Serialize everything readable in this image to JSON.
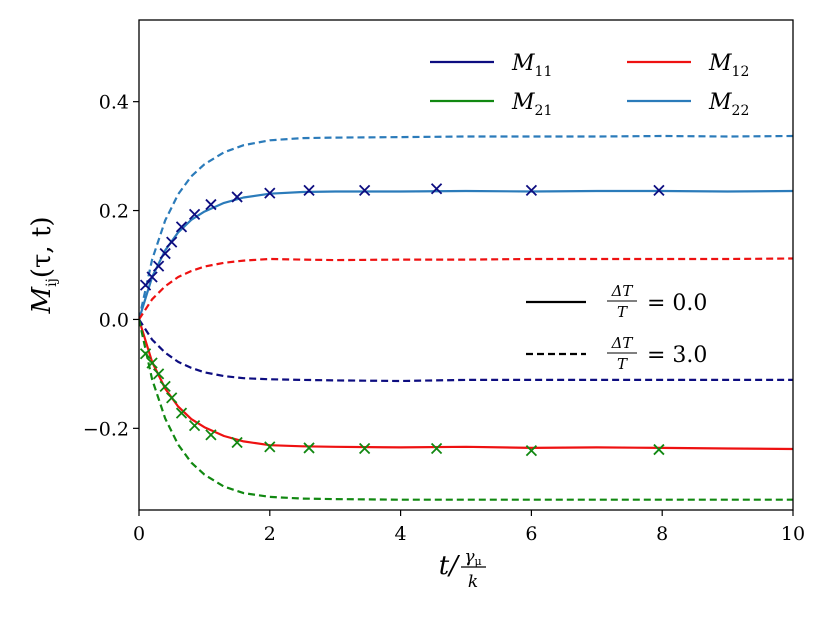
{
  "chart_data": {
    "type": "line",
    "title": "",
    "xlabel_main": "t/",
    "xlabel_num": "γ",
    "xlabel_num_sub": "μ",
    "xlabel_den": "k",
    "ylabel_main": "M",
    "ylabel_sub": "ij",
    "ylabel_args": "(τ, t)",
    "xlim": [
      0,
      10
    ],
    "ylim": [
      -0.35,
      0.55
    ],
    "xticks": [
      0,
      2,
      4,
      6,
      8,
      10
    ],
    "yticks": [
      -0.2,
      0.0,
      0.2,
      0.4
    ],
    "xtick_labels": [
      "0",
      "2",
      "4",
      "6",
      "8",
      "10"
    ],
    "ytick_labels": [
      "−0.2",
      "0.0",
      "0.2",
      "0.4"
    ],
    "grid": false,
    "colors": {
      "M11": "#0d0d80",
      "M12": "#ee1111",
      "M21": "#118811",
      "M22": "#2b7bba"
    },
    "series_legend": [
      {
        "key": "M11",
        "main": "M",
        "sub": "11"
      },
      {
        "key": "M12",
        "main": "M",
        "sub": "12"
      },
      {
        "key": "M21",
        "main": "M",
        "sub": "21"
      },
      {
        "key": "M22",
        "main": "M",
        "sub": "22"
      }
    ],
    "style_legend": [
      {
        "dash": "solid",
        "num": "ΔT",
        "den": "T",
        "value": "= 0.0"
      },
      {
        "dash": "dashed",
        "num": "ΔT",
        "den": "T",
        "value": "= 3.0"
      }
    ],
    "series": [
      {
        "key": "M22",
        "dash": "solid",
        "x": [
          0,
          0.2,
          0.4,
          0.6,
          0.8,
          1.0,
          1.3,
          1.6,
          2.0,
          2.5,
          3.0,
          4.0,
          5.0,
          6.0,
          7.0,
          8.0,
          9.0,
          10.0
        ],
        "y": [
          0,
          0.078,
          0.127,
          0.16,
          0.183,
          0.198,
          0.214,
          0.224,
          0.231,
          0.234,
          0.235,
          0.235,
          0.236,
          0.235,
          0.236,
          0.236,
          0.235,
          0.236
        ]
      },
      {
        "key": "M12",
        "dash": "solid",
        "x": [
          0,
          0.2,
          0.4,
          0.6,
          0.8,
          1.0,
          1.3,
          1.6,
          2.0,
          2.5,
          3.0,
          4.0,
          5.0,
          6.0,
          7.0,
          8.0,
          9.0,
          10.0
        ],
        "y": [
          0,
          -0.078,
          -0.127,
          -0.16,
          -0.183,
          -0.198,
          -0.214,
          -0.224,
          -0.231,
          -0.233,
          -0.234,
          -0.235,
          -0.234,
          -0.236,
          -0.235,
          -0.236,
          -0.237,
          -0.238
        ]
      },
      {
        "key": "M22",
        "dash": "dashed",
        "x": [
          0,
          0.2,
          0.4,
          0.6,
          0.8,
          1.0,
          1.3,
          1.6,
          2.0,
          2.5,
          3.0,
          4.0,
          5.0,
          6.0,
          7.0,
          8.0,
          9.0,
          10.0
        ],
        "y": [
          0,
          0.11,
          0.182,
          0.23,
          0.263,
          0.285,
          0.307,
          0.32,
          0.329,
          0.333,
          0.334,
          0.335,
          0.336,
          0.336,
          0.336,
          0.337,
          0.336,
          0.337
        ]
      },
      {
        "key": "M12",
        "dash": "dashed",
        "x": [
          0,
          0.2,
          0.4,
          0.6,
          0.8,
          1.0,
          1.3,
          1.6,
          2.0,
          2.5,
          3.0,
          4.0,
          5.0,
          6.0,
          7.0,
          8.0,
          9.0,
          10.0
        ],
        "y": [
          0,
          0.037,
          0.061,
          0.078,
          0.089,
          0.097,
          0.104,
          0.108,
          0.111,
          0.11,
          0.109,
          0.11,
          0.11,
          0.111,
          0.111,
          0.111,
          0.111,
          0.112
        ]
      },
      {
        "key": "M11",
        "dash": "dashed",
        "x": [
          0,
          0.2,
          0.4,
          0.6,
          0.8,
          1.0,
          1.3,
          1.6,
          2.0,
          2.5,
          3.0,
          4.0,
          5.0,
          6.0,
          7.0,
          8.0,
          9.0,
          10.0
        ],
        "y": [
          0,
          -0.037,
          -0.061,
          -0.078,
          -0.089,
          -0.097,
          -0.104,
          -0.108,
          -0.11,
          -0.111,
          -0.112,
          -0.113,
          -0.111,
          -0.111,
          -0.111,
          -0.111,
          -0.111,
          -0.111
        ]
      },
      {
        "key": "M21",
        "dash": "dashed",
        "x": [
          0,
          0.2,
          0.4,
          0.6,
          0.8,
          1.0,
          1.3,
          1.6,
          2.0,
          2.5,
          3.0,
          4.0,
          5.0,
          6.0,
          7.0,
          8.0,
          9.0,
          10.0
        ],
        "y": [
          0,
          -0.11,
          -0.182,
          -0.23,
          -0.263,
          -0.285,
          -0.307,
          -0.319,
          -0.326,
          -0.329,
          -0.33,
          -0.331,
          -0.331,
          -0.331,
          -0.331,
          -0.331,
          -0.331,
          -0.331
        ]
      }
    ],
    "markers": [
      {
        "key": "M11",
        "x": [
          0.1,
          0.2,
          0.3,
          0.4,
          0.5,
          0.65,
          0.85,
          1.1,
          1.5,
          2.0,
          2.6,
          3.45,
          4.55,
          6.0,
          7.95
        ],
        "y": [
          0.063,
          0.078,
          0.098,
          0.121,
          0.142,
          0.17,
          0.193,
          0.211,
          0.225,
          0.232,
          0.237,
          0.237,
          0.24,
          0.237,
          0.237
        ]
      },
      {
        "key": "M21",
        "x": [
          0.1,
          0.2,
          0.3,
          0.4,
          0.5,
          0.65,
          0.85,
          1.1,
          1.5,
          2.0,
          2.6,
          3.45,
          4.55,
          6.0,
          7.95
        ],
        "y": [
          -0.063,
          -0.08,
          -0.1,
          -0.123,
          -0.144,
          -0.172,
          -0.195,
          -0.212,
          -0.226,
          -0.234,
          -0.236,
          -0.237,
          -0.237,
          -0.241,
          -0.239
        ]
      }
    ]
  }
}
